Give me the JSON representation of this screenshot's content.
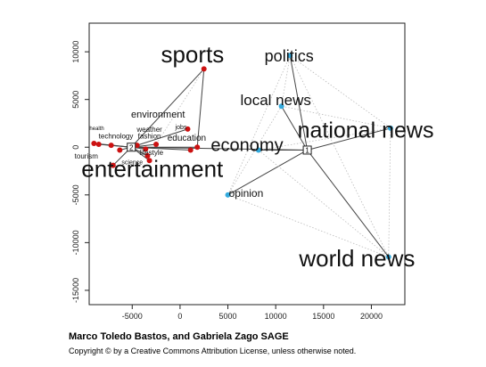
{
  "chart_data": {
    "type": "scatter",
    "title": "",
    "xlabel": "",
    "ylabel": "",
    "xlim": [
      -9500,
      23500
    ],
    "ylim": [
      -16500,
      13000
    ],
    "x_ticks": [
      -5000,
      0,
      5000,
      10000,
      15000,
      20000
    ],
    "y_ticks": [
      -15000,
      -10000,
      -5000,
      0,
      5000,
      10000
    ],
    "grid": false,
    "hubs": [
      {
        "label": "1",
        "x": 13300,
        "y": -300
      },
      {
        "label": "2",
        "x": -5100,
        "y": 0
      }
    ],
    "big_labels": [
      {
        "text": "sports",
        "x": 1300,
        "y": 8900,
        "px": 26
      },
      {
        "text": "politics",
        "x": 11400,
        "y": 9000,
        "px": 18
      },
      {
        "text": "local news",
        "x": 10000,
        "y": 4400,
        "px": 17
      },
      {
        "text": "national news",
        "x": 19400,
        "y": 1000,
        "px": 25
      },
      {
        "text": "economy",
        "x": 7000,
        "y": -400,
        "px": 20
      },
      {
        "text": "opinion",
        "x": 6900,
        "y": -5200,
        "px": 12
      },
      {
        "text": "world news",
        "x": 18500,
        "y": -12500,
        "px": 26
      },
      {
        "text": "entertainment",
        "x": -2900,
        "y": -3100,
        "px": 26
      },
      {
        "text": "environment",
        "x": -2300,
        "y": 3100,
        "px": 11
      },
      {
        "text": "health",
        "x": -8700,
        "y": 1800,
        "px": 6
      },
      {
        "text": "weather",
        "x": -3200,
        "y": 1600,
        "px": 8
      },
      {
        "text": "jobs",
        "x": 100,
        "y": 1900,
        "px": 7
      },
      {
        "text": "technology",
        "x": -6700,
        "y": 900,
        "px": 8
      },
      {
        "text": "fashion",
        "x": -3200,
        "y": 900,
        "px": 8
      },
      {
        "text": "education",
        "x": 700,
        "y": 700,
        "px": 10
      },
      {
        "text": "tourism",
        "x": -9800,
        "y": -1200,
        "px": 8
      },
      {
        "text": "lifestyle",
        "x": -3000,
        "y": -800,
        "px": 8
      },
      {
        "text": "science",
        "x": -5000,
        "y": -1800,
        "px": 7
      }
    ],
    "points": [
      {
        "x": 2500,
        "y": 8200,
        "color": "#cc1111"
      },
      {
        "x": 11500,
        "y": 9600,
        "color": "#33aadd"
      },
      {
        "x": 10600,
        "y": 4300,
        "color": "#33aadd"
      },
      {
        "x": 22000,
        "y": 2000,
        "color": "#33aadd"
      },
      {
        "x": 8200,
        "y": -300,
        "color": "#33aadd"
      },
      {
        "x": 5000,
        "y": -5000,
        "color": "#33aadd"
      },
      {
        "x": 21800,
        "y": -11500,
        "color": "#33aadd"
      },
      {
        "x": -9000,
        "y": 400,
        "color": "#cc1111"
      },
      {
        "x": -8500,
        "y": 300,
        "color": "#cc1111"
      },
      {
        "x": -7200,
        "y": 200,
        "color": "#cc1111"
      },
      {
        "x": -6300,
        "y": -300,
        "color": "#cc1111"
      },
      {
        "x": -7000,
        "y": -1900,
        "color": "#cc1111"
      },
      {
        "x": -4500,
        "y": 200,
        "color": "#cc1111"
      },
      {
        "x": -3600,
        "y": -200,
        "color": "#cc1111"
      },
      {
        "x": -3400,
        "y": -900,
        "color": "#cc1111"
      },
      {
        "x": -3200,
        "y": -1400,
        "color": "#cc1111"
      },
      {
        "x": -2500,
        "y": 300,
        "color": "#cc1111"
      },
      {
        "x": 800,
        "y": 1900,
        "color": "#cc1111"
      },
      {
        "x": 1100,
        "y": -300,
        "color": "#cc1111"
      },
      {
        "x": 1800,
        "y": 0,
        "color": "#cc1111"
      }
    ],
    "edges": [
      {
        "from": [
          13300,
          -300
        ],
        "to": [
          11500,
          9600
        ],
        "style": "solid"
      },
      {
        "from": [
          13300,
          -300
        ],
        "to": [
          10600,
          4300
        ],
        "style": "solid"
      },
      {
        "from": [
          13300,
          -300
        ],
        "to": [
          22000,
          2000
        ],
        "style": "solid"
      },
      {
        "from": [
          13300,
          -300
        ],
        "to": [
          8200,
          -300
        ],
        "style": "solid"
      },
      {
        "from": [
          13300,
          -300
        ],
        "to": [
          5000,
          -5000
        ],
        "style": "solid"
      },
      {
        "from": [
          13300,
          -300
        ],
        "to": [
          21800,
          -11500
        ],
        "style": "solid"
      },
      {
        "from": [
          -5100,
          0
        ],
        "to": [
          2500,
          8200
        ],
        "style": "solid"
      },
      {
        "from": [
          -5100,
          0
        ],
        "to": [
          -9000,
          400
        ],
        "style": "solid"
      },
      {
        "from": [
          -5100,
          0
        ],
        "to": [
          -8500,
          300
        ],
        "style": "solid"
      },
      {
        "from": [
          -5100,
          0
        ],
        "to": [
          -7200,
          200
        ],
        "style": "solid"
      },
      {
        "from": [
          -5100,
          0
        ],
        "to": [
          -6300,
          -300
        ],
        "style": "solid"
      },
      {
        "from": [
          -5100,
          0
        ],
        "to": [
          -7000,
          -1900
        ],
        "style": "solid"
      },
      {
        "from": [
          -5100,
          0
        ],
        "to": [
          -4500,
          200
        ],
        "style": "solid"
      },
      {
        "from": [
          -5100,
          0
        ],
        "to": [
          -3600,
          -200
        ],
        "style": "solid"
      },
      {
        "from": [
          -5100,
          0
        ],
        "to": [
          -3400,
          -900
        ],
        "style": "solid"
      },
      {
        "from": [
          -5100,
          0
        ],
        "to": [
          -3200,
          -1400
        ],
        "style": "solid"
      },
      {
        "from": [
          -5100,
          0
        ],
        "to": [
          -2500,
          300
        ],
        "style": "solid"
      },
      {
        "from": [
          -5100,
          0
        ],
        "to": [
          800,
          1900
        ],
        "style": "solid"
      },
      {
        "from": [
          -5100,
          0
        ],
        "to": [
          1100,
          -300
        ],
        "style": "solid"
      },
      {
        "from": [
          -5100,
          0
        ],
        "to": [
          1800,
          0
        ],
        "style": "solid"
      },
      {
        "from": [
          -5100,
          0
        ],
        "to": [
          13300,
          -300
        ],
        "style": "solid"
      },
      {
        "from": [
          2500,
          8200
        ],
        "to": [
          1800,
          0
        ],
        "style": "solid"
      },
      {
        "from": [
          2500,
          8200
        ],
        "to": [
          -2500,
          300
        ],
        "style": "dotted"
      },
      {
        "from": [
          11500,
          9600
        ],
        "to": [
          22000,
          2000
        ],
        "style": "dotted"
      },
      {
        "from": [
          11500,
          9600
        ],
        "to": [
          21800,
          -11500
        ],
        "style": "dotted"
      },
      {
        "from": [
          11500,
          9600
        ],
        "to": [
          10600,
          4300
        ],
        "style": "dotted"
      },
      {
        "from": [
          22000,
          2000
        ],
        "to": [
          21800,
          -11500
        ],
        "style": "dotted"
      },
      {
        "from": [
          22000,
          2000
        ],
        "to": [
          8200,
          -300
        ],
        "style": "dotted"
      },
      {
        "from": [
          22000,
          2000
        ],
        "to": [
          10600,
          4300
        ],
        "style": "dotted"
      },
      {
        "from": [
          5000,
          -5000
        ],
        "to": [
          21800,
          -11500
        ],
        "style": "dotted"
      },
      {
        "from": [
          5000,
          -5000
        ],
        "to": [
          10600,
          4300
        ],
        "style": "dotted"
      },
      {
        "from": [
          5000,
          -5000
        ],
        "to": [
          11500,
          9600
        ],
        "style": "dotted"
      },
      {
        "from": [
          8200,
          -300
        ],
        "to": [
          21800,
          -11500
        ],
        "style": "dotted"
      }
    ]
  },
  "credit": "Marco Toledo Bastos, and Gabriela Zago SAGE",
  "copyright": "Copyright © by a Creative Commons Attribution License, unless otherwise noted."
}
